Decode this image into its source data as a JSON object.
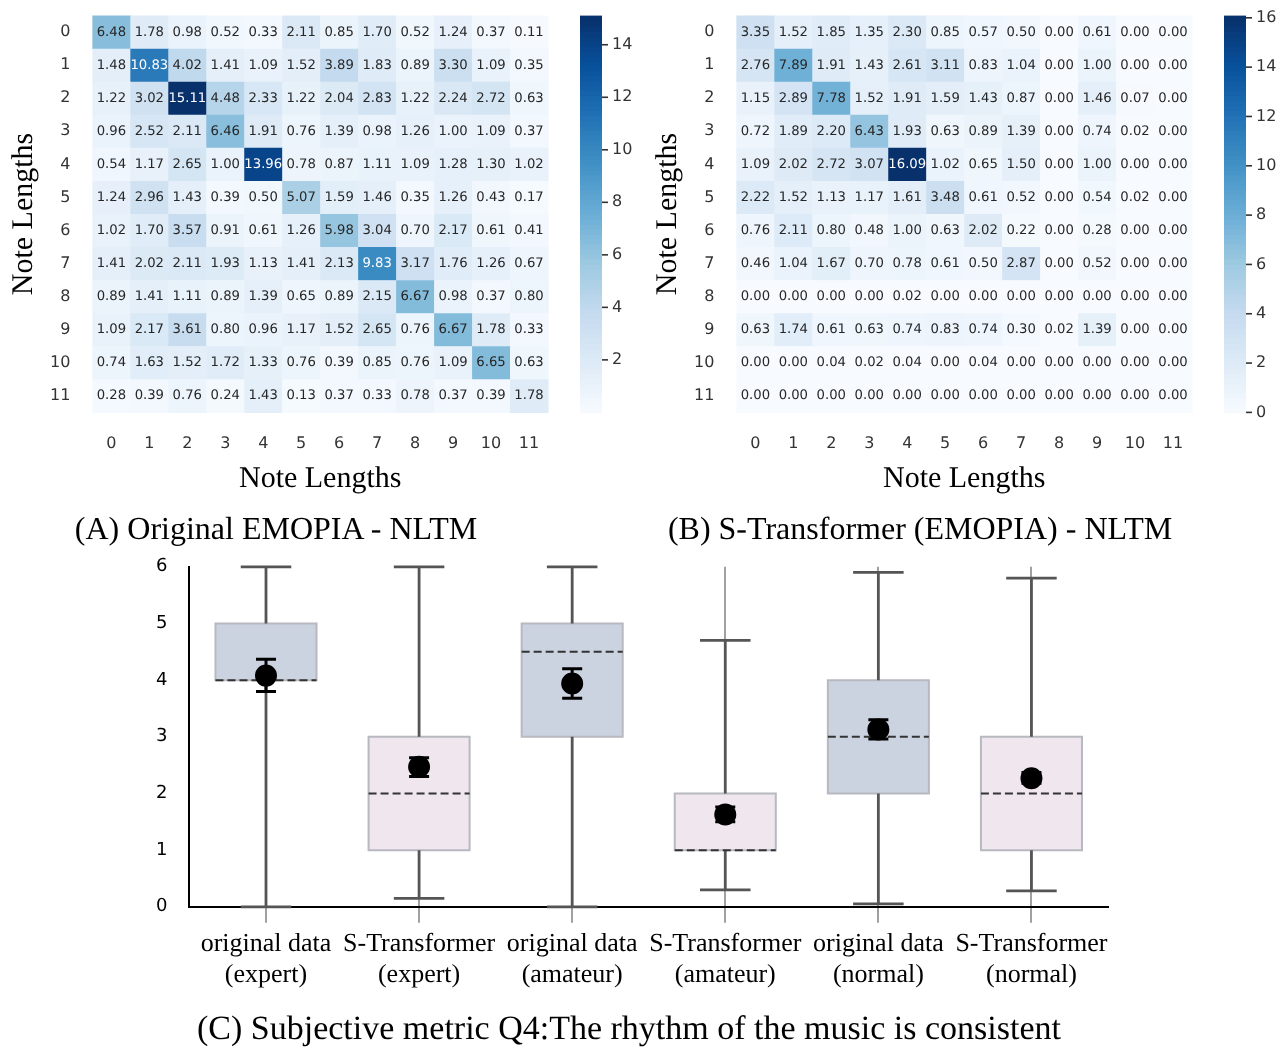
{
  "chart_data": [
    {
      "type": "heatmap",
      "title": "(A) Original EMOPIA - NLTM",
      "xlabel": "Note Lengths",
      "ylabel": "Note Lengths",
      "categories": [
        "0",
        "1",
        "2",
        "3",
        "4",
        "5",
        "6",
        "7",
        "8",
        "9",
        "10",
        "11"
      ],
      "y_categories": [
        "0",
        "1",
        "2",
        "3",
        "4",
        "5",
        "6",
        "7",
        "8",
        "9",
        "10",
        "11"
      ],
      "cells": [
        [
          6.48,
          1.78,
          0.98,
          0.52,
          0.33,
          2.11,
          0.85,
          1.7,
          0.52,
          1.24,
          0.37,
          0.11
        ],
        [
          1.48,
          10.83,
          4.02,
          1.41,
          1.09,
          1.52,
          3.89,
          1.83,
          0.89,
          3.3,
          1.09,
          0.35
        ],
        [
          1.22,
          3.02,
          15.11,
          4.48,
          2.33,
          1.22,
          2.04,
          2.83,
          1.22,
          2.24,
          2.72,
          0.63
        ],
        [
          0.96,
          2.52,
          2.11,
          6.46,
          1.91,
          0.76,
          1.39,
          0.98,
          1.26,
          1.0,
          1.09,
          0.37
        ],
        [
          0.54,
          1.17,
          2.65,
          1.0,
          13.96,
          0.78,
          0.87,
          1.11,
          1.09,
          1.28,
          1.3,
          1.02
        ],
        [
          1.24,
          2.96,
          1.43,
          0.39,
          0.5,
          5.07,
          1.59,
          1.46,
          0.35,
          1.26,
          0.43,
          0.17
        ],
        [
          1.02,
          1.7,
          3.57,
          0.91,
          0.61,
          1.26,
          5.98,
          3.04,
          0.7,
          2.17,
          0.61,
          0.41
        ],
        [
          1.41,
          2.02,
          2.11,
          1.93,
          1.13,
          1.41,
          2.13,
          9.83,
          3.17,
          1.76,
          1.26,
          0.67
        ],
        [
          0.89,
          1.41,
          1.11,
          0.89,
          1.39,
          0.65,
          0.89,
          2.15,
          6.67,
          0.98,
          0.37,
          0.8
        ],
        [
          1.09,
          2.17,
          3.61,
          0.8,
          0.96,
          1.17,
          1.52,
          2.65,
          0.76,
          6.67,
          1.78,
          0.33
        ],
        [
          0.74,
          1.63,
          1.52,
          1.72,
          1.33,
          0.76,
          0.39,
          0.85,
          0.76,
          1.09,
          6.65,
          0.63
        ],
        [
          0.28,
          0.39,
          0.76,
          0.24,
          1.43,
          0.13,
          0.37,
          0.33,
          0.78,
          0.37,
          0.39,
          1.78
        ]
      ],
      "cell_labels": [
        [
          "6.48",
          "1.78",
          "0.98",
          "0.52",
          "0.33",
          "2.11",
          "0.85",
          "1.70",
          "0.52",
          "1.24",
          "0.37",
          "0.11"
        ],
        [
          "1.48",
          "10.83",
          "4.02",
          "1.41",
          "1.09",
          "1.52",
          "3.89",
          "1.83",
          "0.89",
          "3.30",
          "1.09",
          "0.35"
        ],
        [
          "1.22",
          "3.02",
          "15.11",
          "4.48",
          "2.33",
          "1.22",
          "2.04",
          "2.83",
          "1.22",
          "2.24",
          "2.72",
          "0.63"
        ],
        [
          "0.96",
          "2.52",
          "2.11",
          "6.46",
          "1.91",
          "0.76",
          "1.39",
          "0.98",
          "1.26",
          "1.00",
          "1.09",
          "0.37"
        ],
        [
          "0.54",
          "1.17",
          "2.65",
          "1.00",
          "13.96",
          "0.78",
          "0.87",
          "1.11",
          "1.09",
          "1.28",
          "1.30",
          "1.02"
        ],
        [
          "1.24",
          "2.96",
          "1.43",
          "0.39",
          "0.50",
          "5.07",
          "1.59",
          "1.46",
          "0.35",
          "1.26",
          "0.43",
          "0.17"
        ],
        [
          "1.02",
          "1.70",
          "3.57",
          "0.91",
          "0.61",
          "1.26",
          "5.98",
          "3.04",
          "0.70",
          "2.17",
          "0.61",
          "0.41"
        ],
        [
          "1.41",
          "2.02",
          "2.11",
          "1.93",
          "1.13",
          "1.41",
          "2.13",
          "9.83",
          "3.17",
          "1.76",
          "1.26",
          "0.67"
        ],
        [
          "0.89",
          "1.41",
          "1.11",
          "0.89",
          "1.39",
          "0.65",
          "0.89",
          "2.15",
          "6.67",
          "0.98",
          "0.37",
          "0.80"
        ],
        [
          "1.09",
          "2.17",
          "3.61",
          "0.80",
          "0.96",
          "1.17",
          "1.52",
          "2.65",
          "0.76",
          "6.67",
          "1.78",
          "0.33"
        ],
        [
          "0.74",
          "1.63",
          "1.52",
          "1.72",
          "1.33",
          "0.76",
          "0.39",
          "0.85",
          "0.76",
          "1.09",
          "6.65",
          "0.63"
        ],
        [
          "0.28",
          "0.39",
          "0.76",
          "0.24",
          "1.43",
          "0.13",
          "0.37",
          "0.33",
          "0.78",
          "0.37",
          "0.39",
          "1.78"
        ]
      ],
      "data_labels": true,
      "clim": [
        0,
        15.11
      ],
      "cticks": [
        2,
        4,
        6,
        8,
        10,
        12,
        14
      ]
    },
    {
      "type": "heatmap",
      "title": "(B) S-Transformer (EMOPIA) - NLTM",
      "xlabel": "Note Lengths",
      "ylabel": "Note Lengths",
      "categories": [
        "0",
        "1",
        "2",
        "3",
        "4",
        "5",
        "6",
        "7",
        "8",
        "9",
        "10",
        "11"
      ],
      "y_categories": [
        "0",
        "1",
        "2",
        "3",
        "4",
        "5",
        "6",
        "7",
        "8",
        "9",
        "10",
        "11"
      ],
      "cells": [
        [
          3.35,
          1.52,
          1.85,
          1.35,
          2.3,
          0.85,
          0.57,
          0.5,
          0.0,
          0.61,
          0.0,
          0.0
        ],
        [
          2.76,
          7.89,
          1.91,
          1.43,
          2.61,
          3.11,
          0.83,
          1.04,
          0.0,
          1.0,
          0.0,
          0.0
        ],
        [
          1.15,
          2.89,
          7.78,
          1.52,
          1.91,
          1.59,
          1.43,
          0.87,
          0.0,
          1.46,
          0.07,
          0.0
        ],
        [
          0.72,
          1.89,
          2.2,
          6.43,
          1.93,
          0.63,
          0.89,
          1.39,
          0.0,
          0.74,
          0.02,
          0.0
        ],
        [
          1.09,
          2.02,
          2.72,
          3.07,
          16.09,
          1.02,
          0.65,
          1.5,
          0.0,
          1.0,
          0.0,
          0.0
        ],
        [
          2.22,
          1.52,
          1.13,
          1.17,
          1.61,
          3.48,
          0.61,
          0.52,
          0.0,
          0.54,
          0.02,
          0.0
        ],
        [
          0.76,
          2.11,
          0.8,
          0.48,
          1.0,
          0.63,
          2.02,
          0.22,
          0.0,
          0.28,
          0.0,
          0.0
        ],
        [
          0.46,
          1.04,
          1.67,
          0.7,
          0.78,
          0.61,
          0.5,
          2.87,
          0.0,
          0.52,
          0.0,
          0.0
        ],
        [
          0.0,
          0.0,
          0.0,
          0.0,
          0.02,
          0.0,
          0.0,
          0.0,
          0.0,
          0.0,
          0.0,
          0.0
        ],
        [
          0.63,
          1.74,
          0.61,
          0.63,
          0.74,
          0.83,
          0.74,
          0.3,
          0.02,
          1.39,
          0.0,
          0.0
        ],
        [
          0.0,
          0.0,
          0.04,
          0.02,
          0.04,
          0.0,
          0.04,
          0.0,
          0.0,
          0.0,
          0.0,
          0.0
        ],
        [
          0.0,
          0.0,
          0.0,
          0.0,
          0.0,
          0.0,
          0.0,
          0.0,
          0.0,
          0.0,
          0.0,
          0.0
        ]
      ],
      "cell_labels": [
        [
          "3.35",
          "1.52",
          "1.85",
          "1.35",
          "2.30",
          "0.85",
          "0.57",
          "0.50",
          "0.00",
          "0.61",
          "0.00",
          "0.00"
        ],
        [
          "2.76",
          "7.89",
          "1.91",
          "1.43",
          "2.61",
          "3.11",
          "0.83",
          "1.04",
          "0.00",
          "1.00",
          "0.00",
          "0.00"
        ],
        [
          "1.15",
          "2.89",
          "7.78",
          "1.52",
          "1.91",
          "1.59",
          "1.43",
          "0.87",
          "0.00",
          "1.46",
          "0.07",
          "0.00"
        ],
        [
          "0.72",
          "1.89",
          "2.20",
          "6.43",
          "1.93",
          "0.63",
          "0.89",
          "1.39",
          "0.00",
          "0.74",
          "0.02",
          "0.00"
        ],
        [
          "1.09",
          "2.02",
          "2.72",
          "3.07",
          "16.09",
          "1.02",
          "0.65",
          "1.50",
          "0.00",
          "1.00",
          "0.00",
          "0.00"
        ],
        [
          "2.22",
          "1.52",
          "1.13",
          "1.17",
          "1.61",
          "3.48",
          "0.61",
          "0.52",
          "0.00",
          "0.54",
          "0.02",
          "0.00"
        ],
        [
          "0.76",
          "2.11",
          "0.80",
          "0.48",
          "1.00",
          "0.63",
          "2.02",
          "0.22",
          "0.00",
          "0.28",
          "0.00",
          "0.00"
        ],
        [
          "0.46",
          "1.04",
          "1.67",
          "0.70",
          "0.78",
          "0.61",
          "0.50",
          "2.87",
          "0.00",
          "0.52",
          "0.00",
          "0.00"
        ],
        [
          "0.00",
          "0.00",
          "0.00",
          "0.00",
          "0.02",
          "0.00",
          "0.00",
          "0.00",
          "0.00",
          "0.00",
          "0.00",
          "0.00"
        ],
        [
          "0.63",
          "1.74",
          "0.61",
          "0.63",
          "0.74",
          "0.83",
          "0.74",
          "0.30",
          "0.02",
          "1.39",
          "0.00",
          "0.00"
        ],
        [
          "0.00",
          "0.00",
          "0.04",
          "0.02",
          "0.04",
          "0.00",
          "0.04",
          "0.00",
          "0.00",
          "0.00",
          "0.00",
          "0.00"
        ],
        [
          "0.00",
          "0.00",
          "0.00",
          "0.00",
          "0.00",
          "0.00",
          "0.00",
          "0.00",
          "0.00",
          "0.00",
          "0.00",
          "0.00"
        ]
      ],
      "data_labels": true,
      "clim": [
        0,
        16.09
      ],
      "cticks": [
        0,
        2,
        4,
        6,
        8,
        10,
        12,
        14,
        16
      ]
    },
    {
      "type": "box",
      "title": "(C) Subjective metric Q4:The rhythm of the music is consistent",
      "categories": [
        "original data (expert)",
        "S-Transformer (expert)",
        "original data (amateur)",
        "S-Transformer (amateur)",
        "original data (normal)",
        "S-Transformer (normal)"
      ],
      "boxes": [
        {
          "low": 0,
          "q1": 4,
          "median": 4,
          "q3": 5,
          "high": 6
        },
        {
          "low": 0.15,
          "q1": 1,
          "median": 2,
          "q3": 3,
          "high": 6
        },
        {
          "low": 0,
          "q1": 3,
          "median": 4.5,
          "q3": 5,
          "high": 6
        },
        {
          "low": 0.3,
          "q1": 1,
          "median": 1,
          "q3": 2,
          "high": 4.7
        },
        {
          "low": 0.05,
          "q1": 2,
          "median": 3,
          "q3": 4,
          "high": 5.9
        },
        {
          "low": 0.28,
          "q1": 1,
          "median": 2,
          "q3": 3,
          "high": 5.8
        }
      ],
      "colors": [
        "#cbd3e0",
        "#efe6ee",
        "#cbd3e0",
        "#efe6ee",
        "#cbd3e0",
        "#efe6ee"
      ],
      "series": [
        {
          "type": "scatter",
          "color": "#000000",
          "x": [
            "original data (expert)",
            "S-Transformer (expert)",
            "original data (amateur)",
            "S-Transformer (amateur)",
            "original data (normal)",
            "S-Transformer (normal)"
          ],
          "values": [
            4.08,
            2.47,
            3.94,
            1.63,
            3.13,
            2.27
          ],
          "errors": [
            [
              3.8,
              4.37
            ],
            [
              2.3,
              2.63
            ],
            [
              3.68,
              4.2
            ],
            [
              1.5,
              1.76
            ],
            [
              2.96,
              3.3
            ],
            [
              2.18,
              2.37
            ]
          ]
        }
      ],
      "ylim": [
        0,
        6
      ],
      "yticks": [
        0,
        1,
        2,
        3,
        4,
        5,
        6
      ],
      "grid": "x",
      "legend": false
    }
  ]
}
